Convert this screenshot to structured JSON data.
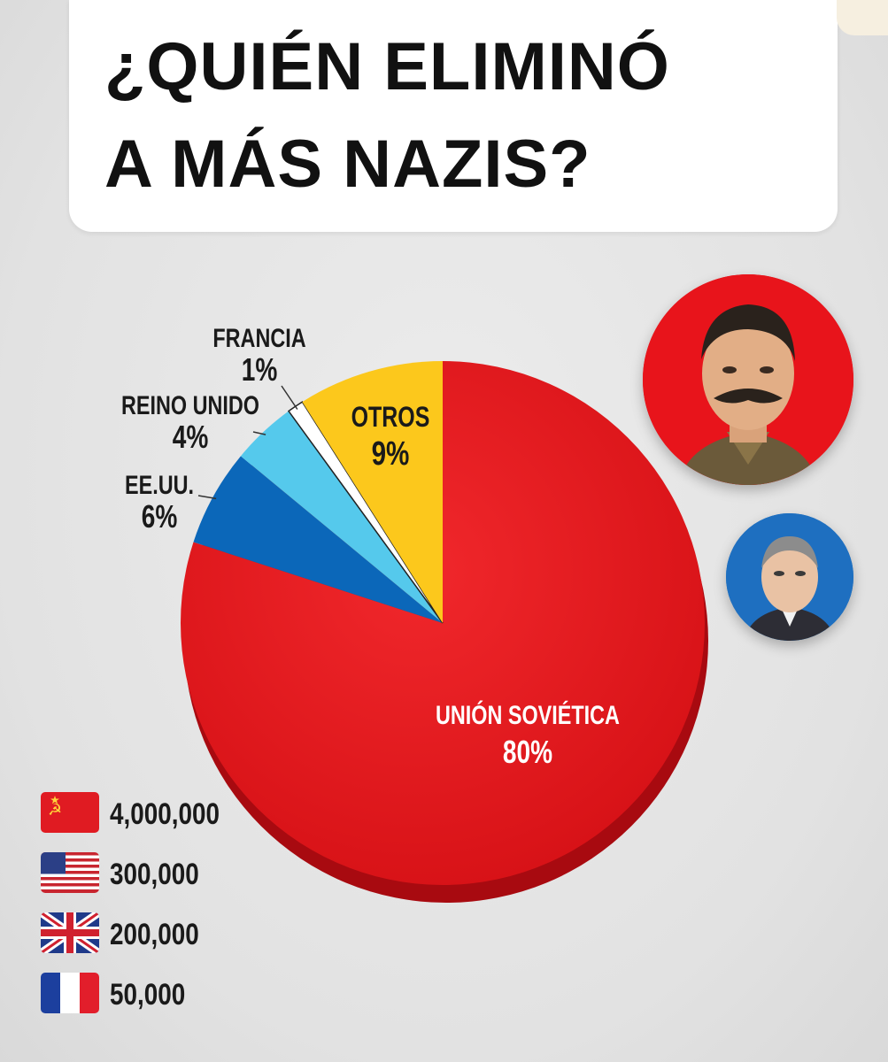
{
  "title": {
    "line1": "¿QUIÉN ELIMINÓ",
    "line2": "A MÁS NAZIS?"
  },
  "chart_data": {
    "type": "pie",
    "title": "¿QUIÉN ELIMINÓ A MÁS NAZIS?",
    "start": "12 o'clock, clockwise",
    "slices": [
      {
        "name": "UNIÓN SOVIÉTICA",
        "value": 80,
        "label": "80%",
        "color": "#e8141b"
      },
      {
        "name": "EE.UU.",
        "value": 6,
        "label": "6%",
        "color": "#0b67b9"
      },
      {
        "name": "REINO UNIDO",
        "value": 4,
        "label": "4%",
        "color": "#55c9ec"
      },
      {
        "name": "FRANCIA",
        "value": 1,
        "label": "1%",
        "color": "#ffffff"
      },
      {
        "name": "OTROS",
        "value": 9,
        "label": "9%",
        "color": "#fcc81c"
      }
    ]
  },
  "legend": [
    {
      "flag": "soviet-flag",
      "value": "4,000,000"
    },
    {
      "flag": "usa-flag",
      "value": "300,000"
    },
    {
      "flag": "uk-flag",
      "value": "200,000"
    },
    {
      "flag": "france-flag",
      "value": "50,000"
    }
  ],
  "portraits": [
    {
      "name": "stalin-portrait",
      "color": "#e8141b"
    },
    {
      "name": "roosevelt-portrait",
      "color": "#1e6fc0"
    }
  ]
}
